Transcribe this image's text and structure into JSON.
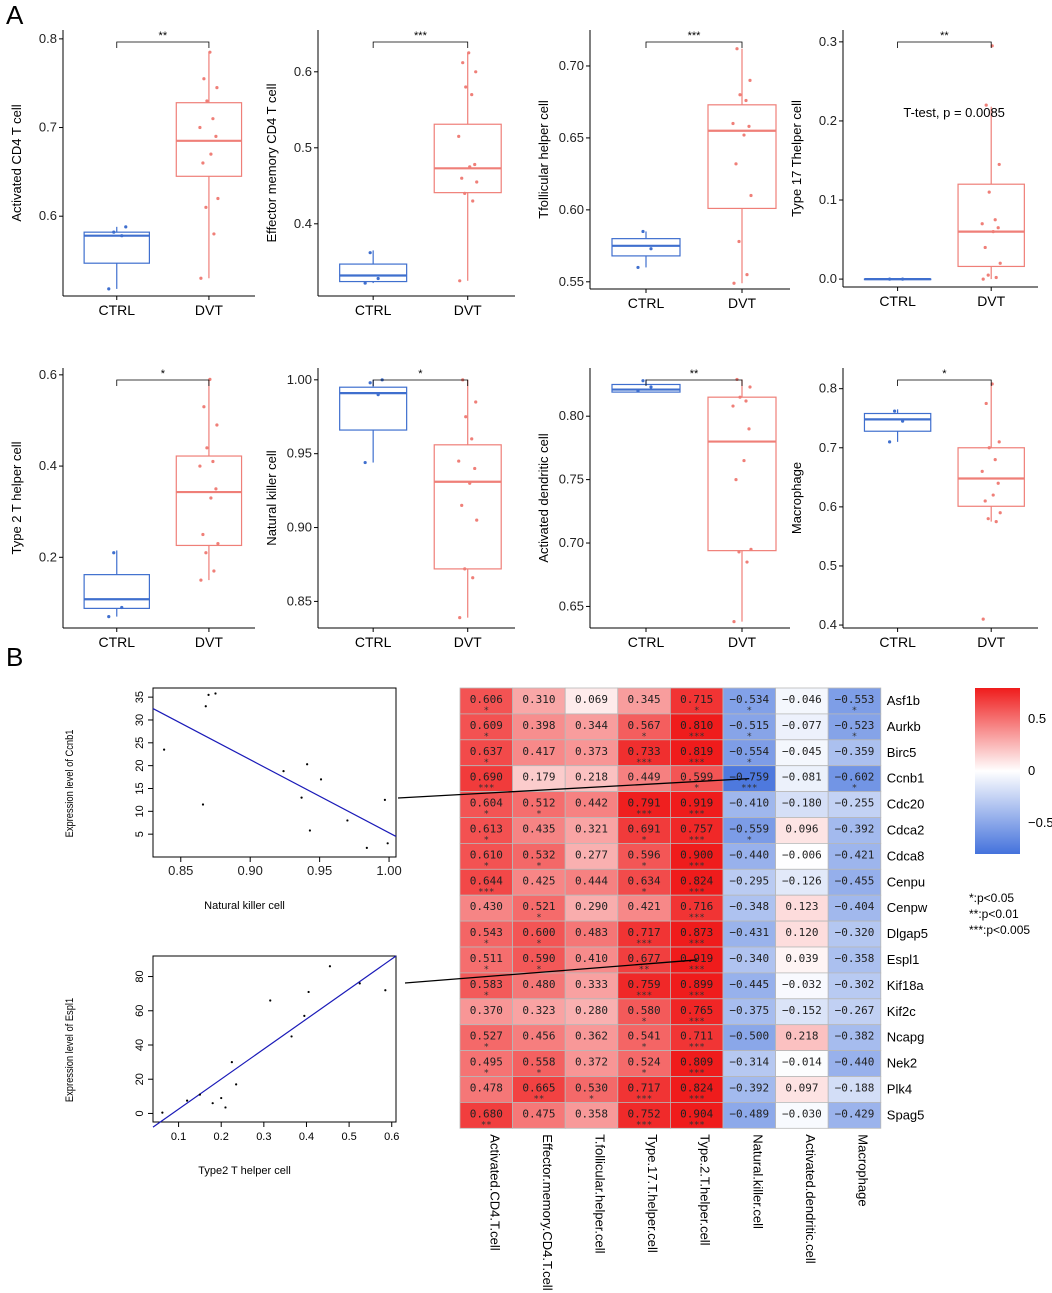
{
  "panel_labels": {
    "a": "A",
    "b": "B"
  },
  "chart_data": [
    {
      "id": "box1",
      "type": "boxplot",
      "ylabel": "Activated CD4 T cell",
      "categories": [
        "CTRL",
        "DVT"
      ],
      "ylim": [
        0.51,
        0.81
      ],
      "yticks": [
        0.6,
        0.7,
        0.8
      ],
      "ytick_labels": [
        "0.6",
        "0.7",
        "0.8"
      ],
      "significance": "**",
      "boxes": [
        {
          "group": "CTRL",
          "min": 0.518,
          "q1": 0.547,
          "median": 0.578,
          "q3": 0.582,
          "max": 0.588,
          "points": [
            0.518,
            0.578,
            0.582,
            0.588
          ]
        },
        {
          "group": "DVT",
          "min": 0.53,
          "q1": 0.645,
          "median": 0.685,
          "q3": 0.728,
          "max": 0.785,
          "points": [
            0.53,
            0.58,
            0.61,
            0.62,
            0.66,
            0.67,
            0.69,
            0.7,
            0.71,
            0.73,
            0.745,
            0.755,
            0.785
          ]
        }
      ]
    },
    {
      "id": "box2",
      "type": "boxplot",
      "ylabel": "Effector memory CD4 T cell",
      "categories": [
        "CTRL",
        "DVT"
      ],
      "ylim": [
        0.305,
        0.655
      ],
      "yticks": [
        0.4,
        0.5,
        0.6
      ],
      "ytick_labels": [
        "0.4",
        "0.5",
        "0.6"
      ],
      "significance": "***",
      "boxes": [
        {
          "group": "CTRL",
          "min": 0.322,
          "q1": 0.324,
          "median": 0.332,
          "q3": 0.347,
          "max": 0.365,
          "points": [
            0.322,
            0.328,
            0.362
          ]
        },
        {
          "group": "DVT",
          "min": 0.325,
          "q1": 0.441,
          "median": 0.473,
          "q3": 0.531,
          "max": 0.625,
          "points": [
            0.325,
            0.43,
            0.44,
            0.455,
            0.46,
            0.475,
            0.478,
            0.515,
            0.57,
            0.58,
            0.6,
            0.612,
            0.625
          ]
        }
      ]
    },
    {
      "id": "box3",
      "type": "boxplot",
      "ylabel": "Tfollicular helper cell",
      "categories": [
        "CTRL",
        "DVT"
      ],
      "ylim": [
        0.545,
        0.725
      ],
      "yticks": [
        0.55,
        0.6,
        0.65,
        0.7
      ],
      "ytick_labels": [
        "0.55",
        "0.60",
        "0.65",
        "0.70"
      ],
      "significance": "***",
      "boxes": [
        {
          "group": "CTRL",
          "min": 0.56,
          "q1": 0.568,
          "median": 0.575,
          "q3": 0.58,
          "max": 0.585,
          "points": [
            0.56,
            0.573,
            0.585
          ]
        },
        {
          "group": "DVT",
          "min": 0.549,
          "q1": 0.601,
          "median": 0.655,
          "q3": 0.673,
          "max": 0.712,
          "points": [
            0.549,
            0.555,
            0.578,
            0.61,
            0.632,
            0.652,
            0.658,
            0.66,
            0.676,
            0.68,
            0.69,
            0.712
          ]
        }
      ]
    },
    {
      "id": "box4",
      "type": "boxplot",
      "ylabel": "Type 17 Thelper cell",
      "categories": [
        "CTRL",
        "DVT"
      ],
      "ylim": [
        -0.01,
        0.315
      ],
      "yticks": [
        0.0,
        0.1,
        0.2,
        0.3
      ],
      "ytick_labels": [
        "0.0",
        "0.1",
        "0.2",
        "0.3"
      ],
      "significance": "**",
      "annotation": "T-test, p = 0.0085",
      "boxes": [
        {
          "group": "CTRL",
          "min": 0.0,
          "q1": 0.0,
          "median": 0.0,
          "q3": 0.0,
          "max": 0.0,
          "points": [
            0.0,
            0.0
          ]
        },
        {
          "group": "DVT",
          "min": 0.0,
          "q1": 0.016,
          "median": 0.06,
          "q3": 0.12,
          "max": 0.218,
          "points": [
            0.0,
            0.002,
            0.005,
            0.02,
            0.04,
            0.06,
            0.065,
            0.07,
            0.075,
            0.11,
            0.145,
            0.22,
            0.295
          ]
        }
      ]
    },
    {
      "id": "box5",
      "type": "boxplot",
      "ylabel": "Type 2 T helper cell",
      "categories": [
        "CTRL",
        "DVT"
      ],
      "ylim": [
        0.045,
        0.615
      ],
      "yticks": [
        0.2,
        0.4,
        0.6
      ],
      "ytick_labels": [
        "0.2",
        "0.4",
        "0.6"
      ],
      "significance": "*",
      "boxes": [
        {
          "group": "CTRL",
          "min": 0.07,
          "q1": 0.088,
          "median": 0.108,
          "q3": 0.162,
          "max": 0.215,
          "points": [
            0.07,
            0.09,
            0.21
          ]
        },
        {
          "group": "DVT",
          "min": 0.15,
          "q1": 0.226,
          "median": 0.343,
          "q3": 0.422,
          "max": 0.59,
          "points": [
            0.15,
            0.17,
            0.21,
            0.23,
            0.25,
            0.33,
            0.35,
            0.4,
            0.41,
            0.44,
            0.49,
            0.53,
            0.59
          ]
        }
      ]
    },
    {
      "id": "box6",
      "type": "boxplot",
      "ylabel": "Natural killer cell",
      "categories": [
        "CTRL",
        "DVT"
      ],
      "ylim": [
        0.832,
        1.008
      ],
      "yticks": [
        0.85,
        0.9,
        0.95,
        1.0
      ],
      "ytick_labels": [
        "0.85",
        "0.90",
        "0.95",
        "1.00"
      ],
      "significance": "*",
      "boxes": [
        {
          "group": "CTRL",
          "min": 0.944,
          "q1": 0.966,
          "median": 0.991,
          "q3": 0.995,
          "max": 1.0,
          "points": [
            0.944,
            0.99,
            0.998,
            1.0
          ]
        },
        {
          "group": "DVT",
          "min": 0.839,
          "q1": 0.872,
          "median": 0.931,
          "q3": 0.956,
          "max": 1.0,
          "points": [
            0.839,
            0.866,
            0.872,
            0.905,
            0.915,
            0.93,
            0.94,
            0.945,
            0.96,
            0.975,
            0.985,
            1.0
          ]
        }
      ]
    },
    {
      "id": "box7",
      "type": "boxplot",
      "ylabel": "Activated dendritic cell",
      "categories": [
        "CTRL",
        "DVT"
      ],
      "ylim": [
        0.633,
        0.838
      ],
      "yticks": [
        0.65,
        0.7,
        0.75,
        0.8
      ],
      "ytick_labels": [
        "0.65",
        "0.70",
        "0.75",
        "0.80"
      ],
      "significance": "**",
      "boxes": [
        {
          "group": "CTRL",
          "min": 0.819,
          "q1": 0.819,
          "median": 0.821,
          "q3": 0.825,
          "max": 0.829,
          "points": [
            0.82,
            0.823,
            0.828
          ]
        },
        {
          "group": "DVT",
          "min": 0.638,
          "q1": 0.694,
          "median": 0.78,
          "q3": 0.815,
          "max": 0.829,
          "points": [
            0.638,
            0.685,
            0.693,
            0.695,
            0.75,
            0.765,
            0.79,
            0.808,
            0.812,
            0.815,
            0.823,
            0.829
          ]
        }
      ]
    },
    {
      "id": "box8",
      "type": "boxplot",
      "ylabel": "Macrophage",
      "categories": [
        "CTRL",
        "DVT"
      ],
      "ylim": [
        0.395,
        0.835
      ],
      "yticks": [
        0.4,
        0.5,
        0.6,
        0.7,
        0.8
      ],
      "ytick_labels": [
        "0.4",
        "0.5",
        "0.6",
        "0.7",
        "0.8"
      ],
      "significance": "*",
      "boxes": [
        {
          "group": "CTRL",
          "min": 0.71,
          "q1": 0.728,
          "median": 0.748,
          "q3": 0.758,
          "max": 0.765,
          "points": [
            0.71,
            0.745,
            0.762
          ]
        },
        {
          "group": "DVT",
          "min": 0.575,
          "q1": 0.601,
          "median": 0.648,
          "q3": 0.7,
          "max": 0.805,
          "points": [
            0.41,
            0.575,
            0.58,
            0.59,
            0.61,
            0.62,
            0.64,
            0.66,
            0.68,
            0.7,
            0.71,
            0.775,
            0.808
          ]
        }
      ]
    },
    {
      "id": "scatter1",
      "type": "scatter",
      "xlabel": "Natural killer cell",
      "ylabel": "Expression level of Ccnb1",
      "xlim": [
        0.83,
        1.005
      ],
      "ylim": [
        0,
        37
      ],
      "xticks": [
        0.85,
        0.9,
        0.95,
        1.0
      ],
      "xtick_labels": [
        "0.85",
        "0.90",
        "0.95",
        "1.00"
      ],
      "yticks": [
        5,
        10,
        15,
        20,
        25,
        30,
        35
      ],
      "ytick_labels": [
        "5",
        "10",
        "15",
        "20",
        "25",
        "30",
        "35"
      ],
      "fit_line": {
        "x": [
          0.83,
          1.005
        ],
        "y": [
          32.5,
          4.5
        ]
      },
      "points": [
        [
          0.838,
          23.5
        ],
        [
          0.866,
          11.5
        ],
        [
          0.868,
          33
        ],
        [
          0.87,
          35.5
        ],
        [
          0.875,
          35.8
        ],
        [
          0.924,
          18.8
        ],
        [
          0.937,
          13
        ],
        [
          0.941,
          20.3
        ],
        [
          0.943,
          5.8
        ],
        [
          0.951,
          17
        ],
        [
          0.97,
          8
        ],
        [
          0.984,
          2
        ],
        [
          0.997,
          12.5
        ],
        [
          0.999,
          3
        ]
      ]
    },
    {
      "id": "scatter2",
      "type": "scatter",
      "xlabel": "Type2 T helper cell",
      "ylabel": "Expression level of Espl1",
      "xlim": [
        0.04,
        0.61
      ],
      "ylim": [
        -5,
        92
      ],
      "xticks": [
        0.1,
        0.2,
        0.3,
        0.4,
        0.5,
        0.6
      ],
      "xtick_labels": [
        "0.1",
        "0.2",
        "0.3",
        "0.4",
        "0.5",
        "0.6"
      ],
      "yticks": [
        0,
        20,
        40,
        60,
        80
      ],
      "ytick_labels": [
        "0",
        "20",
        "40",
        "60",
        "80"
      ],
      "fit_line": {
        "x": [
          0.04,
          0.61
        ],
        "y": [
          -8,
          92
        ]
      },
      "points": [
        [
          0.062,
          0.5
        ],
        [
          0.12,
          7.5
        ],
        [
          0.15,
          11
        ],
        [
          0.18,
          6
        ],
        [
          0.2,
          9
        ],
        [
          0.21,
          3.5
        ],
        [
          0.225,
          30
        ],
        [
          0.235,
          17
        ],
        [
          0.315,
          66
        ],
        [
          0.365,
          45
        ],
        [
          0.395,
          57
        ],
        [
          0.405,
          71
        ],
        [
          0.455,
          86
        ],
        [
          0.525,
          76
        ],
        [
          0.585,
          72
        ]
      ]
    },
    {
      "id": "heatmap",
      "type": "heatmap",
      "title": "",
      "rows": [
        "Asf1b",
        "Aurkb",
        "Birc5",
        "Ccnb1",
        "Cdc20",
        "Cdca2",
        "Cdca8",
        "Cenpu",
        "Cenpw",
        "Dlgap5",
        "Espl1",
        "Kif18a",
        "Kif2c",
        "Ncapg",
        "Nek2",
        "Plk4",
        "Spag5"
      ],
      "columns": [
        "Activated.CD4.T.cell",
        "Effector.memory.CD4.T.cell",
        "T.follicular.helper.cell",
        "Type.17.T.helper.cell",
        "Type.2.T.helper.cell",
        "Natural.killer.cell",
        "Activated.dendritic.cell",
        "Macrophage"
      ],
      "values": [
        [
          0.606,
          0.31,
          0.069,
          0.345,
          0.715,
          -0.534,
          -0.046,
          -0.553
        ],
        [
          0.609,
          0.398,
          0.344,
          0.567,
          0.81,
          -0.515,
          -0.077,
          -0.523
        ],
        [
          0.637,
          0.417,
          0.373,
          0.733,
          0.819,
          -0.554,
          -0.045,
          -0.359
        ],
        [
          0.69,
          0.179,
          0.218,
          0.449,
          0.599,
          -0.759,
          -0.081,
          -0.602
        ],
        [
          0.604,
          0.512,
          0.442,
          0.791,
          0.919,
          -0.41,
          -0.18,
          -0.255
        ],
        [
          0.613,
          0.435,
          0.321,
          0.691,
          0.757,
          -0.559,
          0.096,
          -0.392
        ],
        [
          0.61,
          0.532,
          0.277,
          0.596,
          0.9,
          -0.44,
          -0.006,
          -0.421
        ],
        [
          0.644,
          0.425,
          0.444,
          0.634,
          0.824,
          -0.295,
          -0.126,
          -0.455
        ],
        [
          0.43,
          0.521,
          0.29,
          0.421,
          0.716,
          -0.348,
          0.123,
          -0.404
        ],
        [
          0.543,
          0.6,
          0.483,
          0.717,
          0.873,
          -0.431,
          0.12,
          -0.32
        ],
        [
          0.511,
          0.59,
          0.41,
          0.677,
          0.919,
          -0.34,
          0.039,
          -0.358
        ],
        [
          0.583,
          0.48,
          0.333,
          0.759,
          0.899,
          -0.445,
          -0.032,
          -0.302
        ],
        [
          0.37,
          0.323,
          0.28,
          0.58,
          0.765,
          -0.375,
          -0.152,
          -0.267
        ],
        [
          0.527,
          0.456,
          0.362,
          0.541,
          0.711,
          -0.5,
          0.218,
          -0.382
        ],
        [
          0.495,
          0.558,
          0.372,
          0.524,
          0.809,
          -0.314,
          -0.014,
          -0.44
        ],
        [
          0.478,
          0.665,
          0.53,
          0.717,
          0.824,
          -0.392,
          0.097,
          -0.188
        ],
        [
          0.68,
          0.475,
          0.358,
          0.752,
          0.904,
          -0.489,
          -0.03,
          -0.429
        ]
      ],
      "stars": [
        [
          "*",
          "",
          "",
          "",
          "*",
          "*",
          "",
          "*"
        ],
        [
          "*",
          "",
          "",
          "*",
          "***",
          "*",
          "",
          "*"
        ],
        [
          "*",
          "",
          "",
          "***",
          "***",
          "*",
          "",
          ""
        ],
        [
          "***",
          "",
          "",
          "",
          "*",
          "***",
          "",
          "*"
        ],
        [
          "*",
          "*",
          "",
          "***",
          "***",
          "",
          "",
          ""
        ],
        [
          "*",
          "",
          "",
          "*",
          "***",
          "*",
          "",
          ""
        ],
        [
          "*",
          "*",
          "",
          "*",
          "***",
          "",
          "",
          ""
        ],
        [
          "***",
          "",
          "",
          "*",
          "***",
          "",
          "",
          ""
        ],
        [
          "",
          "*",
          "",
          "",
          "***",
          "",
          "",
          ""
        ],
        [
          "*",
          "*",
          "",
          "***",
          "***",
          "",
          "",
          ""
        ],
        [
          "*",
          "*",
          "",
          "**",
          "***",
          "",
          "",
          ""
        ],
        [
          "*",
          "",
          "",
          "***",
          "***",
          "",
          "",
          ""
        ],
        [
          "",
          "",
          "",
          "*",
          "***",
          "",
          "",
          ""
        ],
        [
          "*",
          "",
          "",
          "*",
          "***",
          "",
          "",
          ""
        ],
        [
          "*",
          "*",
          "",
          "*",
          "***",
          "",
          "",
          ""
        ],
        [
          "",
          "**",
          "*",
          "***",
          "***",
          "",
          "",
          ""
        ],
        [
          "**",
          "",
          "",
          "***",
          "***",
          "",
          "",
          ""
        ]
      ],
      "colorbar": {
        "ticks": [
          0.5,
          0.0,
          -0.5
        ],
        "tick_labels": [
          "0.5",
          "0",
          "-0.5"
        ],
        "range": [
          -0.8,
          0.8
        ],
        "low_color": "#4472dc",
        "mid_color": "#ffffff",
        "high_color": "#ef1c1c"
      },
      "significance_legend": [
        "*:p<0.05",
        "**:p<0.01",
        "***:p<0.005"
      ]
    }
  ],
  "colors": {
    "ctrl": "#3f6fce",
    "dvt": "#ef7f78",
    "ctrl_point": "#3f6fce",
    "dvt_point": "#ef7f78",
    "fit_line": "#1a1ab8"
  }
}
